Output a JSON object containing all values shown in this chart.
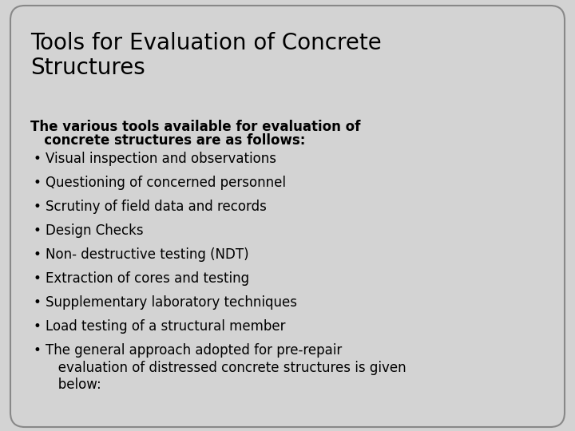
{
  "title": "Tools for Evaluation of Concrete\nStructures",
  "background_color": "#d3d3d3",
  "box_color": "#d3d3d3",
  "box_edge_color": "#888888",
  "text_color": "#000000",
  "title_fontsize": 20,
  "body_fontsize": 12,
  "subtitle_line1": "The various tools available for evaluation of",
  "subtitle_line2": "   concrete structures are as follows:",
  "bullets": [
    "Visual inspection and observations",
    "Questioning of concerned personnel",
    "Scrutiny of field data and records",
    "Design Checks",
    "Non- destructive testing (NDT)",
    "Extraction of cores and testing",
    "Supplementary laboratory techniques",
    "Load testing of a structural member",
    "The general approach adopted for pre-repair\n   evaluation of distressed concrete structures is given\n   below:"
  ],
  "fig_width": 7.2,
  "fig_height": 5.4,
  "dpi": 100
}
